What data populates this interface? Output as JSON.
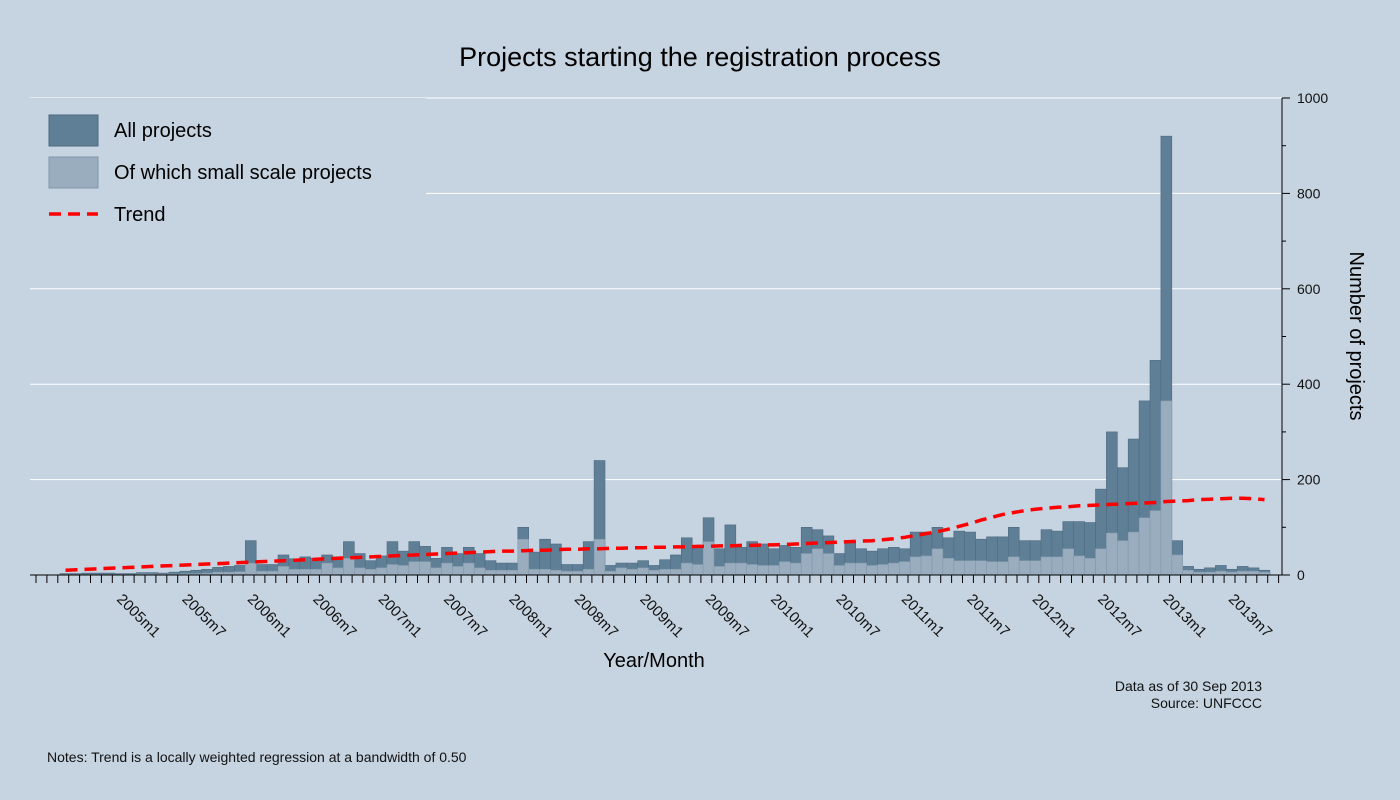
{
  "chart_data": {
    "type": "bar",
    "title": "Projects starting the registration process",
    "xlabel": "Year/Month",
    "ylabel": "Number of projects",
    "ylim": [
      0,
      1000
    ],
    "yticks": [
      0,
      200,
      400,
      600,
      800,
      1000
    ],
    "grid": true,
    "legend_position": "top-left",
    "x_tick_labels": [
      "2005m1",
      "2005m7",
      "2006m1",
      "2006m7",
      "2007m1",
      "2007m7",
      "2008m1",
      "2008m7",
      "2009m1",
      "2009m7",
      "2010m1",
      "2010m7",
      "2011m1",
      "2011m7",
      "2012m1",
      "2012m7",
      "2013m1",
      "2013m7"
    ],
    "series": [
      {
        "name": "All projects",
        "color": "#5f7f96",
        "values": [
          3,
          3,
          4,
          4,
          4,
          3,
          3,
          5,
          5,
          4,
          6,
          8,
          10,
          12,
          16,
          18,
          20,
          72,
          22,
          22,
          42,
          34,
          38,
          35,
          42,
          38,
          70,
          45,
          30,
          40,
          70,
          50,
          70,
          60,
          35,
          58,
          45,
          58,
          45,
          30,
          25,
          25,
          100,
          48,
          75,
          65,
          22,
          22,
          70,
          240,
          20,
          25,
          25,
          30,
          20,
          32,
          42,
          78,
          62,
          120,
          55,
          105,
          58,
          70,
          65,
          55,
          62,
          58,
          100,
          95,
          82,
          45,
          70,
          55,
          50,
          55,
          58,
          55,
          90,
          90,
          100,
          78,
          92,
          90,
          75,
          80,
          80,
          100,
          72,
          72,
          95,
          92,
          112,
          112,
          110,
          180,
          300,
          225,
          285,
          365,
          450,
          920,
          72,
          18,
          12,
          15,
          20,
          12,
          18,
          15,
          10
        ]
      },
      {
        "name": "Of which small scale projects",
        "color": "#99adbf",
        "values": [
          1,
          1,
          1,
          1,
          1,
          1,
          1,
          2,
          2,
          2,
          2,
          3,
          3,
          4,
          6,
          6,
          7,
          25,
          8,
          8,
          18,
          12,
          12,
          12,
          25,
          15,
          35,
          15,
          12,
          15,
          22,
          20,
          28,
          28,
          15,
          25,
          18,
          25,
          15,
          10,
          10,
          10,
          75,
          12,
          12,
          10,
          8,
          8,
          12,
          75,
          8,
          15,
          12,
          15,
          10,
          12,
          12,
          25,
          22,
          70,
          18,
          25,
          25,
          22,
          20,
          20,
          28,
          25,
          45,
          55,
          45,
          20,
          25,
          25,
          20,
          22,
          25,
          28,
          38,
          40,
          55,
          35,
          30,
          30,
          30,
          28,
          28,
          38,
          30,
          30,
          38,
          38,
          55,
          40,
          35,
          55,
          88,
          72,
          90,
          120,
          135,
          365,
          42,
          10,
          6,
          6,
          8,
          6,
          8,
          8,
          6
        ]
      },
      {
        "name": "Trend",
        "color": "#ff0000",
        "style": "dashed",
        "values": [
          10,
          11,
          12,
          13,
          14,
          15,
          16,
          17,
          18,
          19,
          20,
          21,
          22,
          23,
          24,
          25,
          26,
          27,
          28,
          29,
          30,
          31,
          32,
          33,
          34,
          35,
          36,
          37,
          38,
          39,
          40,
          41,
          42,
          43,
          44,
          45,
          46,
          47,
          48,
          49,
          50,
          50,
          51,
          52,
          52,
          53,
          54,
          54,
          55,
          55,
          56,
          56,
          57,
          57,
          58,
          58,
          59,
          59,
          60,
          60,
          61,
          61,
          62,
          62,
          63,
          63,
          64,
          65,
          66,
          67,
          68,
          69,
          70,
          71,
          72,
          74,
          76,
          79,
          83,
          87,
          91,
          96,
          102,
          108,
          115,
          121,
          127,
          131,
          135,
          138,
          140,
          142,
          143,
          145,
          146,
          147,
          148,
          149,
          150,
          151,
          152,
          154,
          155,
          156,
          158,
          159,
          160,
          161,
          161,
          160,
          158
        ]
      }
    ]
  },
  "source_note": {
    "line1": "Data as of 30 Sep 2013",
    "line2": "Source: UNFCCC"
  },
  "footnote": "Notes: Trend is a locally weighted regression at a bandwidth of 0.50"
}
